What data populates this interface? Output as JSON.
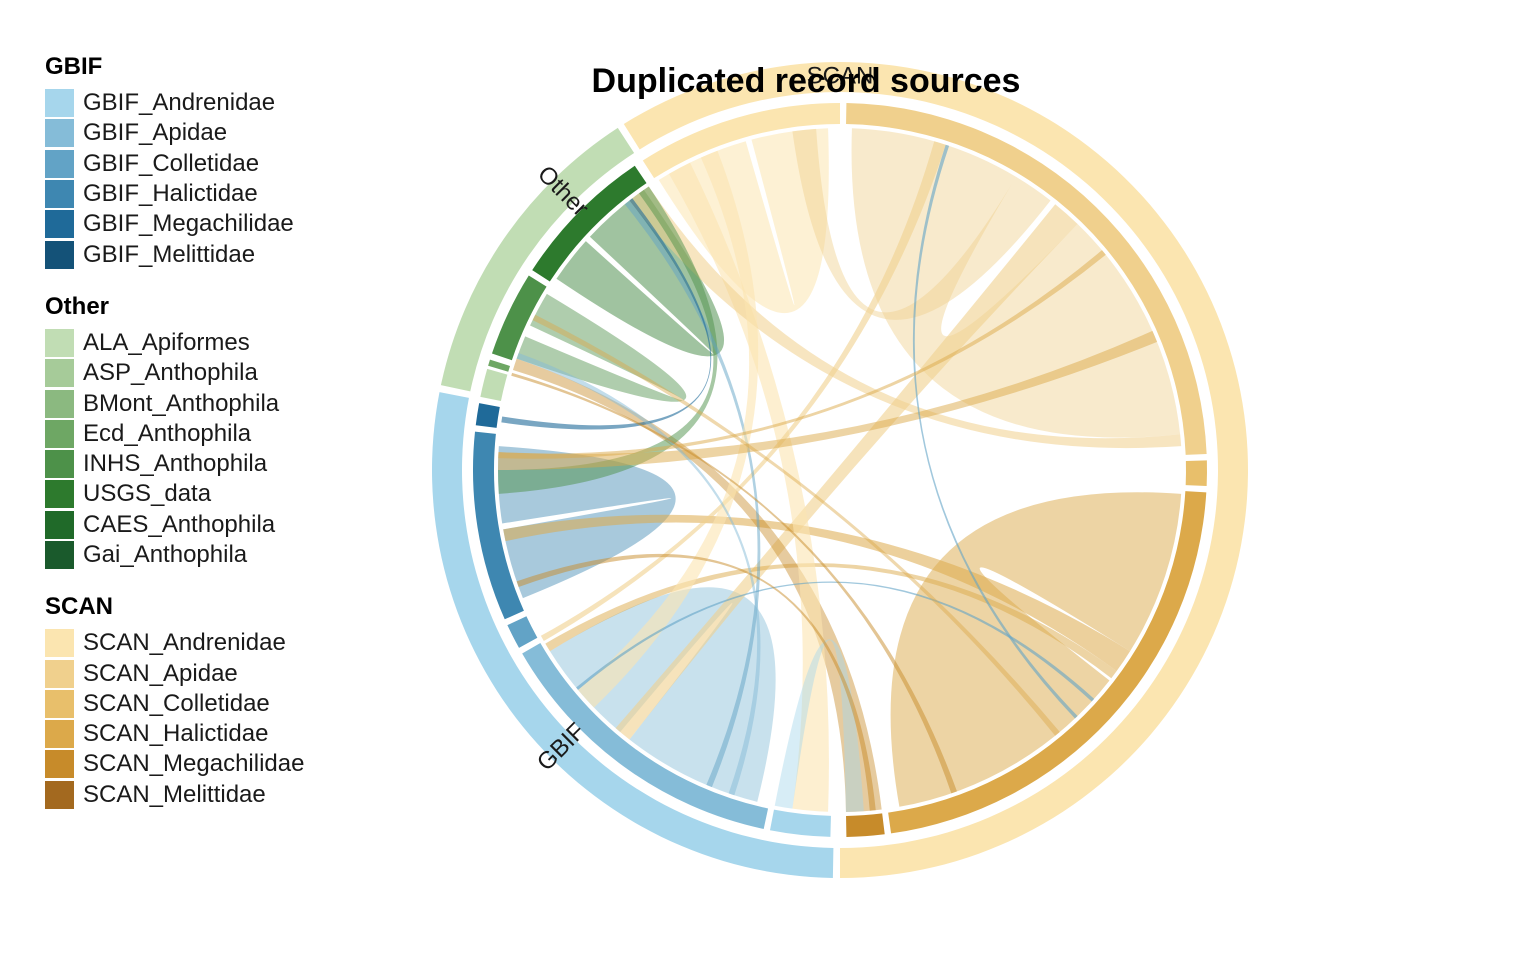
{
  "title": "Duplicated record sources",
  "legend": [
    {
      "title": "GBIF",
      "items": [
        {
          "label": "GBIF_Andrenidae",
          "color": "#a6d6ec"
        },
        {
          "label": "GBIF_Apidae",
          "color": "#85bcd8"
        },
        {
          "label": "GBIF_Colletidae",
          "color": "#62a3c6"
        },
        {
          "label": "GBIF_Halictidae",
          "color": "#3e87b1"
        },
        {
          "label": "GBIF_Megachilidae",
          "color": "#1f6a99"
        },
        {
          "label": "GBIF_Melittidae",
          "color": "#145278"
        }
      ]
    },
    {
      "title": "Other",
      "items": [
        {
          "label": "ALA_Apiformes",
          "color": "#c1ddb4"
        },
        {
          "label": "ASP_Anthophila",
          "color": "#a6cb99"
        },
        {
          "label": "BMont_Anthophila",
          "color": "#8bb980"
        },
        {
          "label": "Ecd_Anthophila",
          "color": "#6ea764"
        },
        {
          "label": "INHS_Anthophila",
          "color": "#4d9149"
        },
        {
          "label": "USGS_data",
          "color": "#2d7a2d"
        },
        {
          "label": "CAES_Anthophila",
          "color": "#206a29"
        },
        {
          "label": "Gai_Anthophila",
          "color": "#1a5a2c"
        }
      ]
    },
    {
      "title": "SCAN",
      "items": [
        {
          "label": "SCAN_Andrenidae",
          "color": "#fbe5b0"
        },
        {
          "label": "SCAN_Apidae",
          "color": "#f0d08d"
        },
        {
          "label": "SCAN_Colletidae",
          "color": "#e8bf6b"
        },
        {
          "label": "SCAN_Halictidae",
          "color": "#dca94a"
        },
        {
          "label": "SCAN_Megachilidae",
          "color": "#c78b2a"
        },
        {
          "label": "SCAN_Melittidae",
          "color": "#a3691f"
        }
      ]
    }
  ],
  "chart_data": {
    "type": "chord",
    "groups": [
      {
        "label": "SCAN",
        "color": "#fbe5b0"
      },
      {
        "label": "GBIF",
        "color": "#a6d6ec"
      },
      {
        "label": "Other",
        "color": "#c1ddb4"
      }
    ],
    "sectors": [
      {
        "name": "SCAN_Apidae",
        "group": "SCAN",
        "color": "#f0d08d",
        "start": 271,
        "end": 357.5
      },
      {
        "name": "SCAN_Colletidae",
        "group": "SCAN",
        "color": "#e8bf6b",
        "start": 358.5,
        "end": 362.5
      },
      {
        "name": "SCAN_Halictidae",
        "group": "SCAN",
        "color": "#dca94a",
        "start": 363.5,
        "end": 442
      },
      {
        "name": "SCAN_Megachilidae",
        "group": "SCAN",
        "color": "#c78b2a",
        "start": 443,
        "end": 449
      },
      {
        "name": "GBIF_Andrenidae",
        "group": "GBIF",
        "color": "#a6d6ec",
        "start": 91.5,
        "end": 101
      },
      {
        "name": "GBIF_Apidae",
        "group": "GBIF",
        "color": "#85bcd8",
        "start": 102,
        "end": 150
      },
      {
        "name": "GBIF_Colletidae",
        "group": "GBIF",
        "color": "#62a3c6",
        "start": 151,
        "end": 155
      },
      {
        "name": "GBIF_Halictidae",
        "group": "GBIF",
        "color": "#3e87b1",
        "start": 156,
        "end": 186
      },
      {
        "name": "GBIF_Megachilidae",
        "group": "GBIF",
        "color": "#1f6a99",
        "start": 187,
        "end": 190.5
      },
      {
        "name": "Other_ALA_ASP_BMont",
        "group": "Other",
        "color": "#c1ddb4",
        "start": 191.5,
        "end": 196
      },
      {
        "name": "Ecd_Anthophila",
        "group": "Other",
        "color": "#6ea764",
        "start": 196.5,
        "end": 197.5
      },
      {
        "name": "INHS_Anthophila",
        "group": "Other",
        "color": "#4d9149",
        "start": 198.5,
        "end": 212
      },
      {
        "name": "USGS_data",
        "group": "Other",
        "color": "#2d7a2d",
        "start": 213,
        "end": 236
      },
      {
        "name": "SCAN_Andrenidae",
        "group": "SCAN",
        "color": "#fbe5b0",
        "start": 237.5,
        "end": 270
      }
    ],
    "outer_arcs": [
      {
        "group": "SCAN",
        "start": 238,
        "end": 450
      },
      {
        "group": "GBIF",
        "start": 91,
        "end": 191
      },
      {
        "group": "Other",
        "start": 192,
        "end": 237
      }
    ]
  }
}
